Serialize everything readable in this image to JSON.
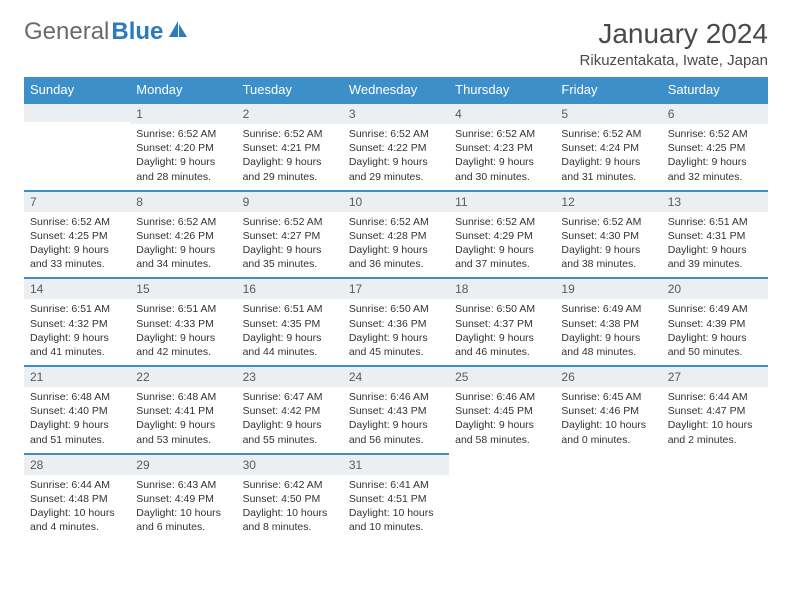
{
  "logo": {
    "text_gray": "General",
    "text_blue": "Blue"
  },
  "title": "January 2024",
  "location": "Rikuzentakata, Iwate, Japan",
  "colors": {
    "header_bg": "#3d8fc9",
    "header_text": "#ffffff",
    "daynum_bg": "#eceff1",
    "border": "#3d8fc9",
    "body_text": "#333333",
    "logo_gray": "#6a6a6a",
    "logo_blue": "#2b7bbf"
  },
  "weekdays": [
    "Sunday",
    "Monday",
    "Tuesday",
    "Wednesday",
    "Thursday",
    "Friday",
    "Saturday"
  ],
  "weeks": [
    [
      null,
      {
        "n": "1",
        "sr": "Sunrise: 6:52 AM",
        "ss": "Sunset: 4:20 PM",
        "dl": "Daylight: 9 hours and 28 minutes."
      },
      {
        "n": "2",
        "sr": "Sunrise: 6:52 AM",
        "ss": "Sunset: 4:21 PM",
        "dl": "Daylight: 9 hours and 29 minutes."
      },
      {
        "n": "3",
        "sr": "Sunrise: 6:52 AM",
        "ss": "Sunset: 4:22 PM",
        "dl": "Daylight: 9 hours and 29 minutes."
      },
      {
        "n": "4",
        "sr": "Sunrise: 6:52 AM",
        "ss": "Sunset: 4:23 PM",
        "dl": "Daylight: 9 hours and 30 minutes."
      },
      {
        "n": "5",
        "sr": "Sunrise: 6:52 AM",
        "ss": "Sunset: 4:24 PM",
        "dl": "Daylight: 9 hours and 31 minutes."
      },
      {
        "n": "6",
        "sr": "Sunrise: 6:52 AM",
        "ss": "Sunset: 4:25 PM",
        "dl": "Daylight: 9 hours and 32 minutes."
      }
    ],
    [
      {
        "n": "7",
        "sr": "Sunrise: 6:52 AM",
        "ss": "Sunset: 4:25 PM",
        "dl": "Daylight: 9 hours and 33 minutes."
      },
      {
        "n": "8",
        "sr": "Sunrise: 6:52 AM",
        "ss": "Sunset: 4:26 PM",
        "dl": "Daylight: 9 hours and 34 minutes."
      },
      {
        "n": "9",
        "sr": "Sunrise: 6:52 AM",
        "ss": "Sunset: 4:27 PM",
        "dl": "Daylight: 9 hours and 35 minutes."
      },
      {
        "n": "10",
        "sr": "Sunrise: 6:52 AM",
        "ss": "Sunset: 4:28 PM",
        "dl": "Daylight: 9 hours and 36 minutes."
      },
      {
        "n": "11",
        "sr": "Sunrise: 6:52 AM",
        "ss": "Sunset: 4:29 PM",
        "dl": "Daylight: 9 hours and 37 minutes."
      },
      {
        "n": "12",
        "sr": "Sunrise: 6:52 AM",
        "ss": "Sunset: 4:30 PM",
        "dl": "Daylight: 9 hours and 38 minutes."
      },
      {
        "n": "13",
        "sr": "Sunrise: 6:51 AM",
        "ss": "Sunset: 4:31 PM",
        "dl": "Daylight: 9 hours and 39 minutes."
      }
    ],
    [
      {
        "n": "14",
        "sr": "Sunrise: 6:51 AM",
        "ss": "Sunset: 4:32 PM",
        "dl": "Daylight: 9 hours and 41 minutes."
      },
      {
        "n": "15",
        "sr": "Sunrise: 6:51 AM",
        "ss": "Sunset: 4:33 PM",
        "dl": "Daylight: 9 hours and 42 minutes."
      },
      {
        "n": "16",
        "sr": "Sunrise: 6:51 AM",
        "ss": "Sunset: 4:35 PM",
        "dl": "Daylight: 9 hours and 44 minutes."
      },
      {
        "n": "17",
        "sr": "Sunrise: 6:50 AM",
        "ss": "Sunset: 4:36 PM",
        "dl": "Daylight: 9 hours and 45 minutes."
      },
      {
        "n": "18",
        "sr": "Sunrise: 6:50 AM",
        "ss": "Sunset: 4:37 PM",
        "dl": "Daylight: 9 hours and 46 minutes."
      },
      {
        "n": "19",
        "sr": "Sunrise: 6:49 AM",
        "ss": "Sunset: 4:38 PM",
        "dl": "Daylight: 9 hours and 48 minutes."
      },
      {
        "n": "20",
        "sr": "Sunrise: 6:49 AM",
        "ss": "Sunset: 4:39 PM",
        "dl": "Daylight: 9 hours and 50 minutes."
      }
    ],
    [
      {
        "n": "21",
        "sr": "Sunrise: 6:48 AM",
        "ss": "Sunset: 4:40 PM",
        "dl": "Daylight: 9 hours and 51 minutes."
      },
      {
        "n": "22",
        "sr": "Sunrise: 6:48 AM",
        "ss": "Sunset: 4:41 PM",
        "dl": "Daylight: 9 hours and 53 minutes."
      },
      {
        "n": "23",
        "sr": "Sunrise: 6:47 AM",
        "ss": "Sunset: 4:42 PM",
        "dl": "Daylight: 9 hours and 55 minutes."
      },
      {
        "n": "24",
        "sr": "Sunrise: 6:46 AM",
        "ss": "Sunset: 4:43 PM",
        "dl": "Daylight: 9 hours and 56 minutes."
      },
      {
        "n": "25",
        "sr": "Sunrise: 6:46 AM",
        "ss": "Sunset: 4:45 PM",
        "dl": "Daylight: 9 hours and 58 minutes."
      },
      {
        "n": "26",
        "sr": "Sunrise: 6:45 AM",
        "ss": "Sunset: 4:46 PM",
        "dl": "Daylight: 10 hours and 0 minutes."
      },
      {
        "n": "27",
        "sr": "Sunrise: 6:44 AM",
        "ss": "Sunset: 4:47 PM",
        "dl": "Daylight: 10 hours and 2 minutes."
      }
    ],
    [
      {
        "n": "28",
        "sr": "Sunrise: 6:44 AM",
        "ss": "Sunset: 4:48 PM",
        "dl": "Daylight: 10 hours and 4 minutes."
      },
      {
        "n": "29",
        "sr": "Sunrise: 6:43 AM",
        "ss": "Sunset: 4:49 PM",
        "dl": "Daylight: 10 hours and 6 minutes."
      },
      {
        "n": "30",
        "sr": "Sunrise: 6:42 AM",
        "ss": "Sunset: 4:50 PM",
        "dl": "Daylight: 10 hours and 8 minutes."
      },
      {
        "n": "31",
        "sr": "Sunrise: 6:41 AM",
        "ss": "Sunset: 4:51 PM",
        "dl": "Daylight: 10 hours and 10 minutes."
      },
      null,
      null,
      null
    ]
  ]
}
